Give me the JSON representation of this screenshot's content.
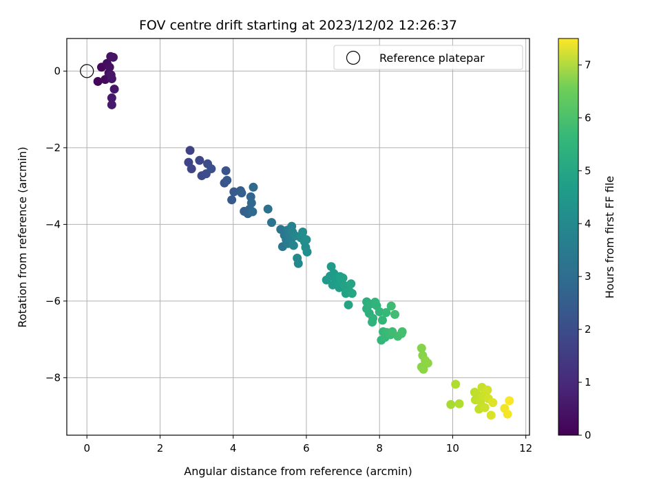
{
  "chart_data": {
    "type": "scatter",
    "title": "FOV centre drift starting at 2023/12/02 12:26:37",
    "xlabel": "Angular distance from reference (arcmin)",
    "ylabel": "Rotation from reference (arcmin)",
    "xlim": [
      -0.55,
      12.1
    ],
    "ylim": [
      -9.5,
      0.85
    ],
    "xticks": [
      0,
      2,
      4,
      6,
      8,
      10,
      12
    ],
    "yticks": [
      0,
      -2,
      -4,
      -6,
      -8
    ],
    "grid": true,
    "colormap": "viridis",
    "colorbar": {
      "label": "Hours from first FF file",
      "range": [
        0,
        7.5
      ],
      "ticks": [
        0,
        1,
        2,
        3,
        4,
        5,
        6,
        7
      ]
    },
    "legend": {
      "position": "top-right",
      "entries": [
        "Reference platepar"
      ]
    },
    "reference_point": {
      "x": 0,
      "y": 0
    },
    "points": [
      {
        "x": 0.3,
        "y": -0.27,
        "t": 0.1
      },
      {
        "x": 0.4,
        "y": 0.1,
        "t": 0.15
      },
      {
        "x": 0.5,
        "y": -0.22,
        "t": 0.2
      },
      {
        "x": 0.55,
        "y": 0.2,
        "t": 0.25
      },
      {
        "x": 0.6,
        "y": -0.05,
        "t": 0.3
      },
      {
        "x": 0.62,
        "y": 0.1,
        "t": 0.33
      },
      {
        "x": 0.65,
        "y": 0.38,
        "t": 0.36
      },
      {
        "x": 0.68,
        "y": -0.2,
        "t": 0.4
      },
      {
        "x": 0.72,
        "y": 0.36,
        "t": 0.42
      },
      {
        "x": 0.66,
        "y": -0.1,
        "t": 0.45
      },
      {
        "x": 0.75,
        "y": -0.47,
        "t": 0.48
      },
      {
        "x": 0.68,
        "y": -0.7,
        "t": 0.52
      },
      {
        "x": 0.68,
        "y": -0.88,
        "t": 0.55
      },
      {
        "x": 2.82,
        "y": -2.07,
        "t": 1.5
      },
      {
        "x": 2.78,
        "y": -2.38,
        "t": 1.55
      },
      {
        "x": 2.86,
        "y": -2.55,
        "t": 1.6
      },
      {
        "x": 3.08,
        "y": -2.33,
        "t": 1.65
      },
      {
        "x": 3.14,
        "y": -2.73,
        "t": 1.7
      },
      {
        "x": 3.26,
        "y": -2.68,
        "t": 1.75
      },
      {
        "x": 3.3,
        "y": -2.42,
        "t": 1.8
      },
      {
        "x": 3.4,
        "y": -2.55,
        "t": 1.85
      },
      {
        "x": 3.8,
        "y": -2.6,
        "t": 1.95
      },
      {
        "x": 3.76,
        "y": -2.92,
        "t": 2.0
      },
      {
        "x": 3.83,
        "y": -2.85,
        "t": 2.05
      },
      {
        "x": 3.96,
        "y": -3.36,
        "t": 2.1
      },
      {
        "x": 4.02,
        "y": -3.15,
        "t": 2.15
      },
      {
        "x": 4.2,
        "y": -3.12,
        "t": 2.2
      },
      {
        "x": 4.23,
        "y": -3.18,
        "t": 2.25
      },
      {
        "x": 4.3,
        "y": -3.66,
        "t": 2.3
      },
      {
        "x": 4.4,
        "y": -3.72,
        "t": 2.35
      },
      {
        "x": 4.45,
        "y": -3.6,
        "t": 2.4
      },
      {
        "x": 4.48,
        "y": -3.28,
        "t": 2.45
      },
      {
        "x": 4.5,
        "y": -3.44,
        "t": 2.5
      },
      {
        "x": 4.53,
        "y": -3.67,
        "t": 2.55
      },
      {
        "x": 4.55,
        "y": -3.03,
        "t": 2.6
      },
      {
        "x": 4.95,
        "y": -3.6,
        "t": 2.8
      },
      {
        "x": 5.05,
        "y": -3.95,
        "t": 2.85
      },
      {
        "x": 5.3,
        "y": -4.13,
        "t": 2.9
      },
      {
        "x": 5.35,
        "y": -4.58,
        "t": 2.95
      },
      {
        "x": 5.4,
        "y": -4.28,
        "t": 3.0
      },
      {
        "x": 5.45,
        "y": -4.4,
        "t": 3.05
      },
      {
        "x": 5.48,
        "y": -4.15,
        "t": 3.1
      },
      {
        "x": 5.5,
        "y": -4.5,
        "t": 3.15
      },
      {
        "x": 5.55,
        "y": -4.25,
        "t": 3.2
      },
      {
        "x": 5.58,
        "y": -4.4,
        "t": 3.25
      },
      {
        "x": 5.6,
        "y": -4.05,
        "t": 3.3
      },
      {
        "x": 5.62,
        "y": -4.2,
        "t": 3.35
      },
      {
        "x": 5.65,
        "y": -4.55,
        "t": 3.4
      },
      {
        "x": 5.7,
        "y": -4.3,
        "t": 3.45
      },
      {
        "x": 5.75,
        "y": -4.88,
        "t": 3.5
      },
      {
        "x": 5.78,
        "y": -5.02,
        "t": 3.55
      },
      {
        "x": 5.85,
        "y": -4.35,
        "t": 3.6
      },
      {
        "x": 5.9,
        "y": -4.2,
        "t": 3.62
      },
      {
        "x": 5.95,
        "y": -4.45,
        "t": 3.65
      },
      {
        "x": 5.98,
        "y": -4.6,
        "t": 3.67
      },
      {
        "x": 6.0,
        "y": -4.4,
        "t": 3.7
      },
      {
        "x": 6.02,
        "y": -4.72,
        "t": 3.72
      },
      {
        "x": 6.55,
        "y": -5.45,
        "t": 4.0
      },
      {
        "x": 6.65,
        "y": -5.35,
        "t": 4.05
      },
      {
        "x": 6.68,
        "y": -5.1,
        "t": 4.08
      },
      {
        "x": 6.72,
        "y": -5.58,
        "t": 4.1
      },
      {
        "x": 6.75,
        "y": -5.28,
        "t": 4.12
      },
      {
        "x": 6.8,
        "y": -5.5,
        "t": 4.15
      },
      {
        "x": 6.85,
        "y": -5.4,
        "t": 4.18
      },
      {
        "x": 6.9,
        "y": -5.65,
        "t": 4.2
      },
      {
        "x": 6.92,
        "y": -5.36,
        "t": 4.22
      },
      {
        "x": 6.95,
        "y": -5.48,
        "t": 4.25
      },
      {
        "x": 7.0,
        "y": -5.4,
        "t": 4.28
      },
      {
        "x": 7.05,
        "y": -5.6,
        "t": 4.3
      },
      {
        "x": 7.08,
        "y": -5.8,
        "t": 4.33
      },
      {
        "x": 7.15,
        "y": -6.1,
        "t": 4.36
      },
      {
        "x": 7.18,
        "y": -5.75,
        "t": 4.38
      },
      {
        "x": 7.22,
        "y": -5.55,
        "t": 4.4
      },
      {
        "x": 7.25,
        "y": -5.8,
        "t": 4.42
      },
      {
        "x": 7.65,
        "y": -6.02,
        "t": 4.7
      },
      {
        "x": 7.65,
        "y": -6.2,
        "t": 4.72
      },
      {
        "x": 7.72,
        "y": -6.32,
        "t": 4.75
      },
      {
        "x": 7.75,
        "y": -6.08,
        "t": 4.78
      },
      {
        "x": 7.8,
        "y": -6.55,
        "t": 4.8
      },
      {
        "x": 7.82,
        "y": -6.45,
        "t": 4.82
      },
      {
        "x": 7.88,
        "y": -6.03,
        "t": 4.85
      },
      {
        "x": 7.92,
        "y": -6.12,
        "t": 4.88
      },
      {
        "x": 8.0,
        "y": -6.28,
        "t": 4.92
      },
      {
        "x": 8.05,
        "y": -7.02,
        "t": 4.95
      },
      {
        "x": 8.08,
        "y": -6.5,
        "t": 4.98
      },
      {
        "x": 8.1,
        "y": -6.8,
        "t": 5.0
      },
      {
        "x": 8.15,
        "y": -6.95,
        "t": 5.02
      },
      {
        "x": 8.18,
        "y": -6.3,
        "t": 5.05
      },
      {
        "x": 8.2,
        "y": -6.82,
        "t": 5.08
      },
      {
        "x": 8.3,
        "y": -6.88,
        "t": 5.1
      },
      {
        "x": 8.32,
        "y": -6.13,
        "t": 5.12
      },
      {
        "x": 8.35,
        "y": -6.8,
        "t": 5.15
      },
      {
        "x": 8.42,
        "y": -6.35,
        "t": 5.18
      },
      {
        "x": 8.5,
        "y": -6.92,
        "t": 5.2
      },
      {
        "x": 8.6,
        "y": -6.85,
        "t": 5.22
      },
      {
        "x": 8.62,
        "y": -6.8,
        "t": 5.25
      },
      {
        "x": 9.15,
        "y": -7.23,
        "t": 6.1
      },
      {
        "x": 9.18,
        "y": -7.42,
        "t": 6.12
      },
      {
        "x": 9.15,
        "y": -7.72,
        "t": 6.15
      },
      {
        "x": 9.2,
        "y": -7.78,
        "t": 6.18
      },
      {
        "x": 9.25,
        "y": -7.55,
        "t": 6.2
      },
      {
        "x": 9.32,
        "y": -7.62,
        "t": 6.22
      },
      {
        "x": 9.95,
        "y": -8.7,
        "t": 6.5
      },
      {
        "x": 10.08,
        "y": -8.17,
        "t": 6.6
      },
      {
        "x": 10.18,
        "y": -8.68,
        "t": 6.62
      },
      {
        "x": 10.6,
        "y": -8.38,
        "t": 6.75
      },
      {
        "x": 10.62,
        "y": -8.58,
        "t": 6.78
      },
      {
        "x": 10.68,
        "y": -8.45,
        "t": 6.8
      },
      {
        "x": 10.72,
        "y": -8.82,
        "t": 6.82
      },
      {
        "x": 10.76,
        "y": -8.62,
        "t": 6.85
      },
      {
        "x": 10.8,
        "y": -8.25,
        "t": 6.88
      },
      {
        "x": 10.84,
        "y": -8.48,
        "t": 6.9
      },
      {
        "x": 10.88,
        "y": -8.78,
        "t": 6.92
      },
      {
        "x": 10.9,
        "y": -8.4,
        "t": 6.95
      },
      {
        "x": 10.95,
        "y": -8.32,
        "t": 6.98
      },
      {
        "x": 10.98,
        "y": -8.55,
        "t": 7.0
      },
      {
        "x": 11.05,
        "y": -8.98,
        "t": 7.1
      },
      {
        "x": 11.1,
        "y": -8.65,
        "t": 7.15
      },
      {
        "x": 11.42,
        "y": -8.8,
        "t": 7.35
      },
      {
        "x": 11.5,
        "y": -8.95,
        "t": 7.4
      },
      {
        "x": 11.55,
        "y": -8.6,
        "t": 7.45
      }
    ]
  }
}
